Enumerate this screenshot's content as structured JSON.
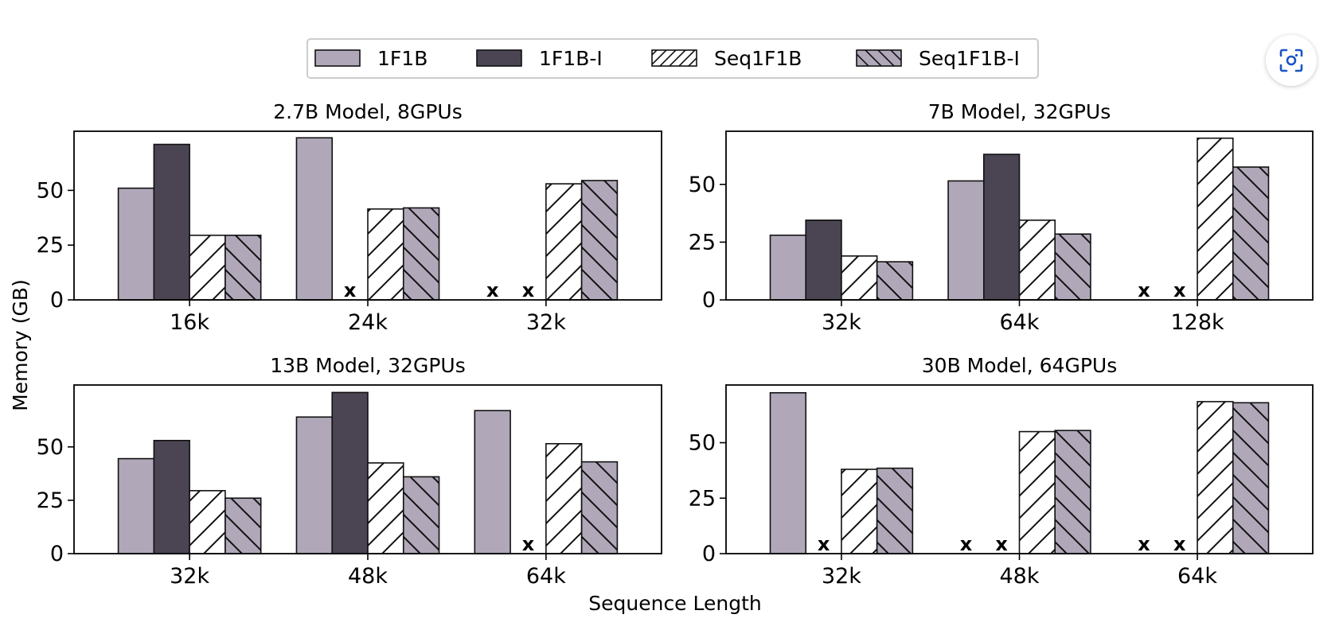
{
  "legend": [
    {
      "label": "1F1B",
      "fill": "#b0a8b9",
      "hatch": "none"
    },
    {
      "label": "1F1B-I",
      "fill": "#4a4453",
      "hatch": "none"
    },
    {
      "label": "Seq1F1B",
      "fill": "#ffffff",
      "hatch": "forward"
    },
    {
      "label": "Seq1F1B-I",
      "fill": "#b0a8b9",
      "hatch": "back"
    }
  ],
  "ylabel": "Memory (GB)",
  "xlabel": "Sequence Length",
  "oom_marker": "x",
  "lens_icon": "lens-scan-icon",
  "chart_data": [
    {
      "type": "bar",
      "title": "2.7B Model, 8GPUs",
      "categories": [
        "16k",
        "24k",
        "32k"
      ],
      "yticks": [
        0,
        25,
        50
      ],
      "ylim": [
        0,
        77
      ],
      "series": [
        {
          "name": "1F1B",
          "values": [
            51,
            74,
            null
          ]
        },
        {
          "name": "1F1B-I",
          "values": [
            71,
            null,
            null
          ]
        },
        {
          "name": "Seq1F1B",
          "values": [
            29.5,
            41.5,
            53
          ]
        },
        {
          "name": "Seq1F1B-I",
          "values": [
            29.5,
            42,
            54.5
          ]
        }
      ]
    },
    {
      "type": "bar",
      "title": "7B Model, 32GPUs",
      "categories": [
        "32k",
        "64k",
        "128k"
      ],
      "yticks": [
        0,
        25,
        50
      ],
      "ylim": [
        0,
        73
      ],
      "series": [
        {
          "name": "1F1B",
          "values": [
            28,
            51.5,
            null
          ]
        },
        {
          "name": "1F1B-I",
          "values": [
            34.5,
            63,
            null
          ]
        },
        {
          "name": "Seq1F1B",
          "values": [
            19,
            34.5,
            70
          ]
        },
        {
          "name": "Seq1F1B-I",
          "values": [
            16.5,
            28.5,
            57.5
          ]
        }
      ]
    },
    {
      "type": "bar",
      "title": "13B Model, 32GPUs",
      "categories": [
        "32k",
        "48k",
        "64k"
      ],
      "yticks": [
        0,
        25,
        50
      ],
      "ylim": [
        0,
        79
      ],
      "series": [
        {
          "name": "1F1B",
          "values": [
            44.5,
            64,
            67
          ]
        },
        {
          "name": "1F1B-I",
          "values": [
            53,
            75.5,
            null
          ]
        },
        {
          "name": "Seq1F1B",
          "values": [
            29.5,
            42.5,
            51.5
          ]
        },
        {
          "name": "Seq1F1B-I",
          "values": [
            26,
            36,
            43
          ]
        }
      ]
    },
    {
      "type": "bar",
      "title": "30B Model, 64GPUs",
      "categories": [
        "32k",
        "48k",
        "64k"
      ],
      "yticks": [
        0,
        25,
        50
      ],
      "ylim": [
        0,
        76
      ],
      "series": [
        {
          "name": "1F1B",
          "values": [
            72.5,
            null,
            null
          ]
        },
        {
          "name": "1F1B-I",
          "values": [
            null,
            null,
            null
          ]
        },
        {
          "name": "Seq1F1B",
          "values": [
            38,
            55,
            68.5
          ]
        },
        {
          "name": "Seq1F1B-I",
          "values": [
            38.5,
            55.5,
            68
          ]
        }
      ]
    }
  ]
}
